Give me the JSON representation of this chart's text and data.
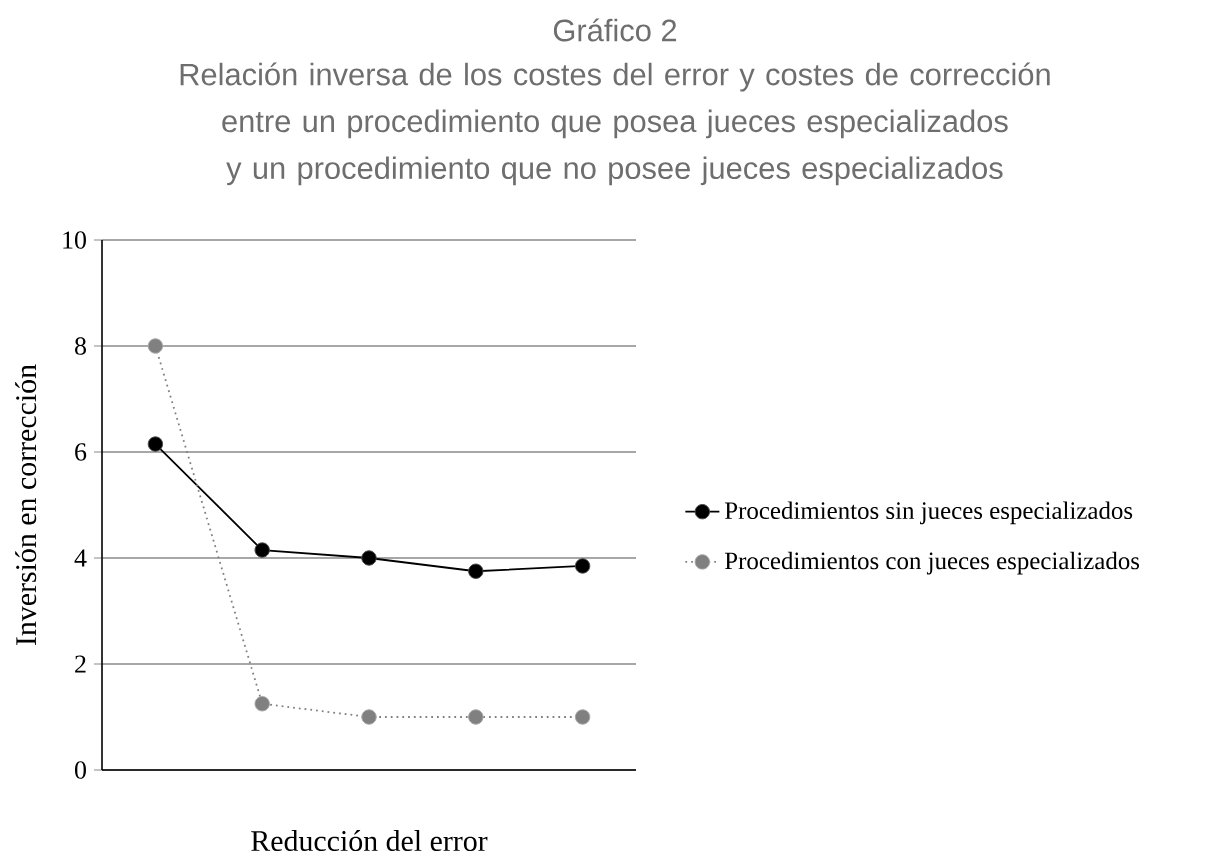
{
  "chart_data": {
    "type": "line",
    "title": "Gráfico 2",
    "subtitle": "Relación inversa de los costes del error y costes de corrección entre un procedimiento que posea jueces especializados y un procedimiento que no posee jueces especializados",
    "xlabel": "Reducción del error",
    "ylabel": "Inversión en corrección",
    "categories": [
      null,
      null,
      null,
      null,
      null
    ],
    "series": [
      {
        "name": "Procedimientos sin jueces especializados",
        "color": "#000000",
        "line_style": "solid",
        "values": [
          6.15,
          4.15,
          4.0,
          3.75,
          3.85
        ]
      },
      {
        "name": "Procedimientos con jueces especializados",
        "color": "#808080",
        "line_style": "dotted",
        "values": [
          8,
          1.25,
          1,
          1,
          1
        ]
      }
    ],
    "ylim": [
      0,
      10
    ],
    "yticks": [
      0,
      2,
      4,
      6,
      8,
      10
    ],
    "grid": "y",
    "legend": "right",
    "marker": "circle"
  }
}
